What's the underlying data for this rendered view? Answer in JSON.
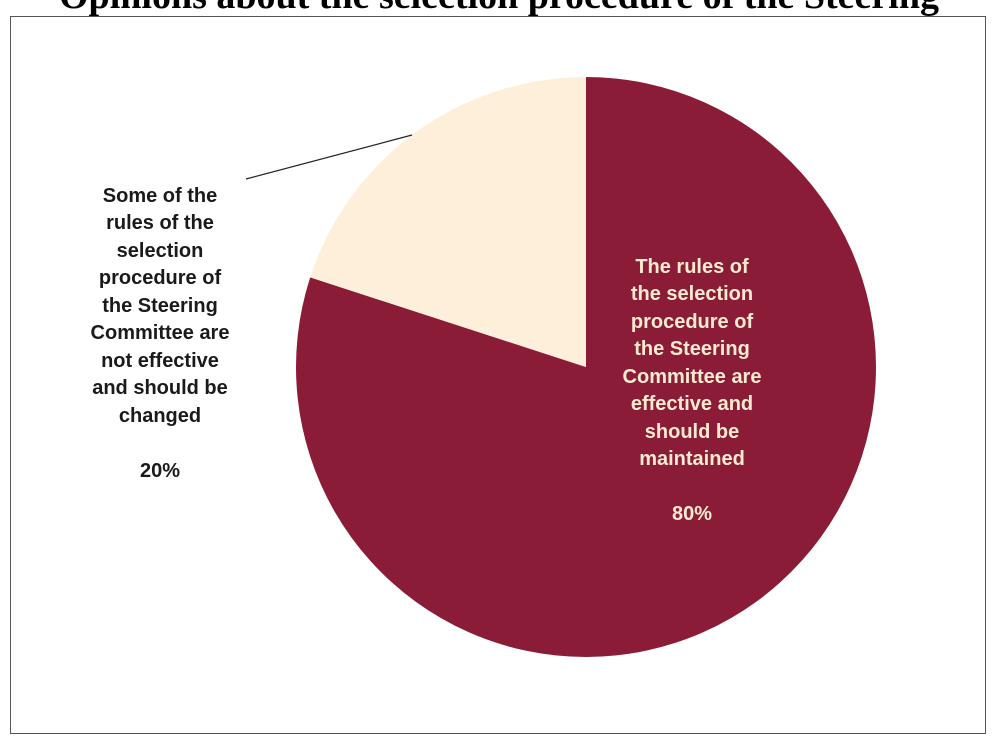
{
  "chart_data": {
    "type": "pie",
    "title": "Opinions about the selection procedure of the Steering",
    "slices": [
      {
        "label": "The rules of the selection procedure of the Steering Committee are effective and should be maintained",
        "display": "The rules of\nthe selection\nprocedure of\nthe Steering\nCommittee are\neffective and\nshould be\nmaintained",
        "pct_label": "80%",
        "value": 80,
        "color": "#8B1C37",
        "text_color": "#FBEBD0"
      },
      {
        "label": "Some of the rules of the selection procedure of the Steering Committee are not effective and should be changed",
        "display": "Some of the\nrules of the\nselection\nprocedure of\nthe Steering\nCommittee are\nnot effective\nand should be\nchanged",
        "pct_label": "20%",
        "value": 20,
        "color": "#FEEFDA",
        "text_color": "#1A1A1A"
      }
    ],
    "legend": "none"
  }
}
